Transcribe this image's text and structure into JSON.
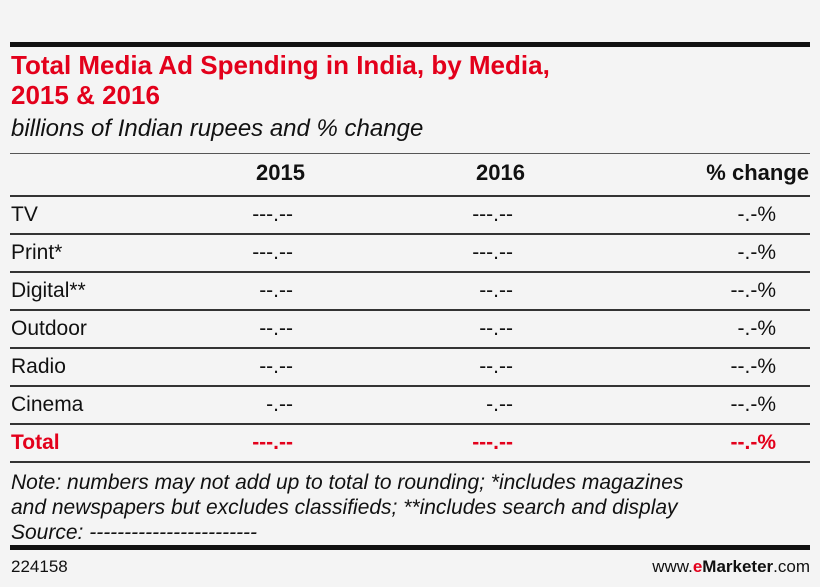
{
  "chart_data": {
    "type": "table",
    "title": "Total Media Ad Spending in India, by Media, 2015 & 2016",
    "title_lines": [
      "Total Media Ad Spending in India, by Media,",
      "2015 & 2016"
    ],
    "subtitle": "billions of Indian rupees and % change",
    "columns": [
      "",
      "2015",
      "2016",
      "% change"
    ],
    "rows": [
      {
        "label": "TV",
        "values": [
          "---.--",
          "---.--",
          "-.-%"
        ]
      },
      {
        "label": "Print*",
        "values": [
          "---.--",
          "---.--",
          "-.-%"
        ]
      },
      {
        "label": "Digital**",
        "values": [
          "--.--",
          "--.--",
          "--.-%"
        ]
      },
      {
        "label": "Outdoor",
        "values": [
          "--.--",
          "--.--",
          "-.-%"
        ]
      },
      {
        "label": "Radio",
        "values": [
          "--.--",
          "--.--",
          "--.-%"
        ]
      },
      {
        "label": "Cinema",
        "values": [
          "-.--",
          "-.--",
          "--.-%"
        ]
      }
    ],
    "total": {
      "label": "Total",
      "values": [
        "---.--",
        "---.--",
        "--.-%"
      ]
    },
    "note_lines": [
      "Note: numbers may not add up to total to rounding; *includes magazines",
      "and newspapers but excludes classifieds; **includes search and display",
      "Source: ------------------------"
    ],
    "colors": {
      "accent": "#e3001b",
      "text": "#111111",
      "background": "#f4f4f4"
    }
  },
  "footer": {
    "id": "224158",
    "site_prefix": "www.",
    "site_e": "e",
    "site_brand": "Marketer",
    "site_suffix": ".com"
  }
}
